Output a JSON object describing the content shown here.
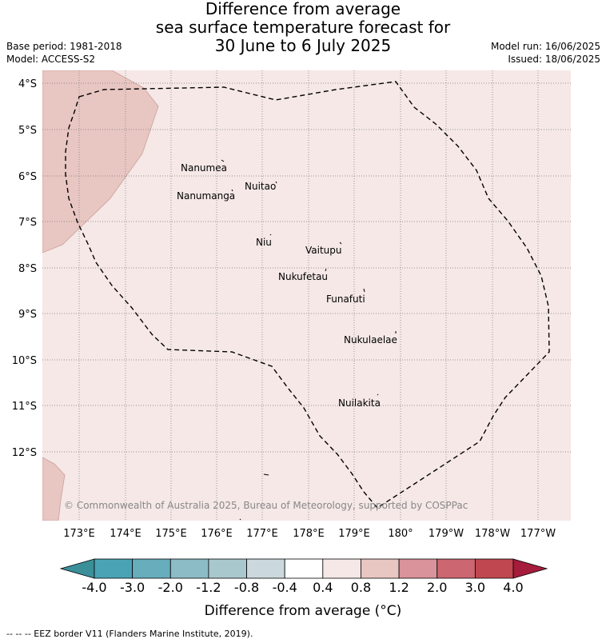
{
  "title": {
    "line1": "Difference from average",
    "line2": "sea surface temperature forecast for",
    "line3": "30 June to 6 July 2025"
  },
  "meta": {
    "base_period": "Base period: 1981-2018",
    "model": "Model: ACCESS-S2",
    "model_run": "Model run: 16/06/2025",
    "issued": "Issued: 18/06/2025"
  },
  "map": {
    "x_ticks": [
      "173°E",
      "174°E",
      "175°E",
      "176°E",
      "177°E",
      "178°E",
      "179°E",
      "180°",
      "179°W",
      "178°W",
      "177°W"
    ],
    "y_ticks": [
      "4°S",
      "5°S",
      "6°S",
      "7°S",
      "8°S",
      "9°S",
      "10°S",
      "11°S",
      "12°S"
    ],
    "islands": [
      "Nanumea",
      "Nuitao",
      "Nanumanga",
      "Niu",
      "Vaitupu",
      "Nukufetau",
      "Funafuti",
      "Nukulaelae",
      "Nuilakita"
    ],
    "copyright": "© Commonwealth of Australia 2025, Bureau of Meteorology, supported by COSPPac",
    "background_color": "#f5e8e6",
    "anomaly_color": "#e8c6c2"
  },
  "colorbar": {
    "labels": [
      "-4.0",
      "-3.0",
      "-2.0",
      "-1.2",
      "-0.8",
      "-0.4",
      "0.4",
      "0.8",
      "1.2",
      "2.0",
      "3.0",
      "4.0"
    ],
    "colors": [
      "#4aa3b5",
      "#67adbc",
      "#8cbcc6",
      "#a9c8cd",
      "#cbd8dd",
      "#ffffff",
      "#f5e8e6",
      "#e8c6c2",
      "#d9939a",
      "#cc6670",
      "#c0474f"
    ],
    "under_color": "#3a8f99",
    "over_color": "#a51c3c",
    "title": "Difference from average (°C)"
  },
  "footer": "--  --  -- EEZ border V11 (Flanders Marine Institute, 2019)."
}
